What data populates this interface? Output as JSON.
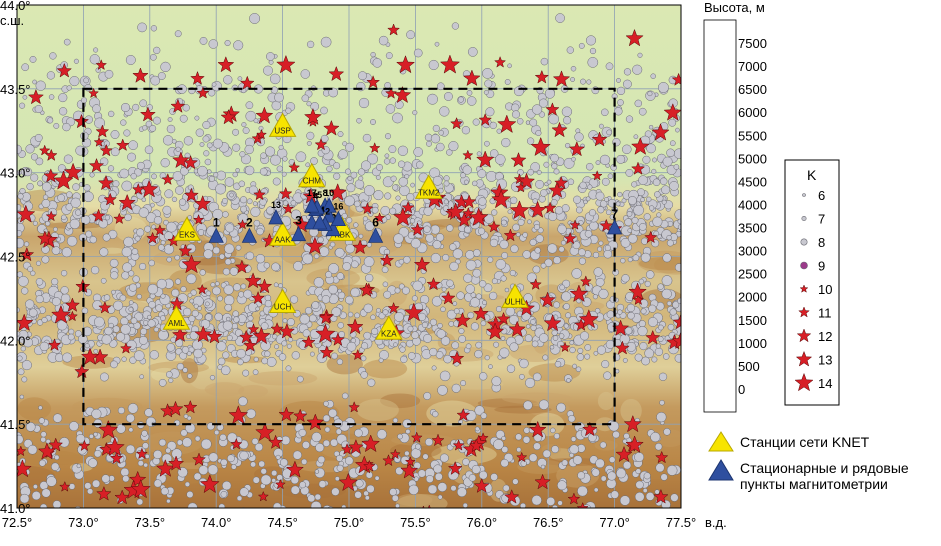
{
  "map": {
    "lon_ticks": [
      "72.5°",
      "73.0°",
      "73.5°",
      "74.0°",
      "74.5°",
      "75.0°",
      "75.5°",
      "76.0°",
      "76.5°",
      "77.0°",
      "77.5°"
    ],
    "lon_unit": "в.д.",
    "lat_ticks": [
      "44.0°",
      "43.5°",
      "43.0°",
      "42.5°",
      "42.0°",
      "41.5°",
      "41.0°"
    ],
    "lat_unit": "с.ш.",
    "extent": {
      "lon": [
        72.5,
        77.5
      ],
      "lat": [
        41.0,
        44.0
      ]
    },
    "study_area": {
      "lon": [
        73.0,
        77.0
      ],
      "lat": [
        41.5,
        43.5
      ]
    }
  },
  "elevation_legend": {
    "title": "Высота, м",
    "levels": [
      "7500",
      "7000",
      "6500",
      "6000",
      "5500",
      "5000",
      "4500",
      "4000",
      "3500",
      "3000",
      "2500",
      "2000",
      "1500",
      "1000",
      "500",
      "0"
    ],
    "colors": [
      "#6b1a1c",
      "#7a2a1e",
      "#863721",
      "#944525",
      "#9c4f27",
      "#a55c2d",
      "#ae6b35",
      "#b87c40",
      "#c08f54",
      "#cba46a",
      "#d6bc86",
      "#e2d09f",
      "#ecdfb1",
      "#eee8b8",
      "#dbe8b3",
      "#c9e3b3",
      "#b8dcb0"
    ]
  },
  "magnitude_legend": {
    "title": "K",
    "items": [
      "6",
      "7",
      "8",
      "9",
      "10",
      "11",
      "12",
      "13",
      "14"
    ]
  },
  "symbol_legend": {
    "knet": "Станции сети KNET",
    "magnetometry": "Стационарные и рядовые пункты магнитометрии",
    "colors": {
      "knet_fill": "#f7e400",
      "magnetometry_fill": "#2f4f9f",
      "star_fill": "#d71f26",
      "circle_fill": "#c8c8d0"
    }
  },
  "knet_stations": [
    {
      "code": "USP",
      "lon": 74.5,
      "lat": 43.27
    },
    {
      "code": "CHM",
      "lon": 74.72,
      "lat": 42.97
    },
    {
      "code": "TKM2",
      "lon": 75.6,
      "lat": 42.9
    },
    {
      "code": "EKS",
      "lon": 73.78,
      "lat": 42.65
    },
    {
      "code": "AAK",
      "lon": 74.5,
      "lat": 42.62
    },
    {
      "code": "KBK",
      "lon": 74.95,
      "lat": 42.65
    },
    {
      "code": "AML",
      "lon": 73.7,
      "lat": 42.12
    },
    {
      "code": "UCH",
      "lon": 74.5,
      "lat": 42.22
    },
    {
      "code": "KZA",
      "lon": 75.3,
      "lat": 42.06
    },
    {
      "code": "ULHL",
      "lon": 76.25,
      "lat": 42.25
    }
  ],
  "magnetometry_points": [
    {
      "label": "1",
      "lon": 74.0,
      "lat": 42.62
    },
    {
      "label": "2",
      "lon": 74.25,
      "lat": 42.62
    },
    {
      "label": "3",
      "lon": 74.62,
      "lat": 42.63
    },
    {
      "label": "4",
      "lon": 74.75,
      "lat": 42.78
    },
    {
      "label": "5",
      "lon": 74.88,
      "lat": 42.66
    },
    {
      "label": "6",
      "lon": 75.2,
      "lat": 42.62
    },
    {
      "label": "7",
      "lon": 77.0,
      "lat": 42.67
    },
    {
      "label": "8",
      "lon": 74.82,
      "lat": 42.8
    },
    {
      "label": "9",
      "lon": 74.85,
      "lat": 42.74
    },
    {
      "label": "10",
      "lon": 74.85,
      "lat": 42.8
    },
    {
      "label": "11",
      "lon": 74.72,
      "lat": 42.7
    },
    {
      "label": "12",
      "lon": 74.82,
      "lat": 42.69
    },
    {
      "label": "13",
      "lon": 74.45,
      "lat": 42.73
    },
    {
      "label": "14",
      "lon": 74.78,
      "lat": 42.7
    },
    {
      "label": "15",
      "lon": 74.76,
      "lat": 42.79
    },
    {
      "label": "16",
      "lon": 74.92,
      "lat": 42.72
    },
    {
      "label": "17",
      "lon": 74.72,
      "lat": 42.8
    }
  ]
}
